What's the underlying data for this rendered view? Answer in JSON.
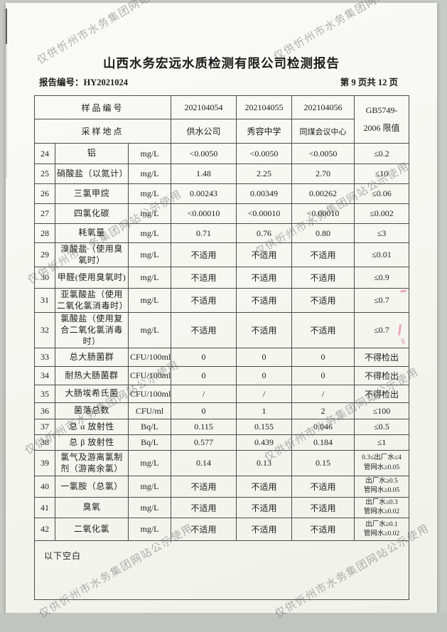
{
  "watermark": {
    "text": "仅供忻州市水务集团网站公示使用"
  },
  "header": {
    "title": "山西水务宏远水质检测有限公司检测报告",
    "report_no_label": "报告编号：",
    "report_no": "HY2021024",
    "page_info": "第 9 页共 12 页"
  },
  "table": {
    "header": {
      "sample_id_label": "样品编号",
      "location_label": "采样地点",
      "sample_ids": [
        "202104054",
        "202104055",
        "202104056"
      ],
      "locations": [
        "供水公司",
        "秀容中学",
        "同煤会议中心"
      ],
      "limit_header": "GB5749-\n2006 限值"
    },
    "rows": [
      {
        "no": "24",
        "name": "铝",
        "unit": "mg/L",
        "v1": "<0.0050",
        "v2": "<0.0050",
        "v3": "<0.0050",
        "limit": "≤0.2"
      },
      {
        "no": "25",
        "name": "硝酸盐（以氮计）",
        "unit": "mg/L",
        "v1": "1.48",
        "v2": "2.25",
        "v3": "2.70",
        "limit": "≤10"
      },
      {
        "no": "26",
        "name": "三氯甲烷",
        "unit": "mg/L",
        "v1": "0.00243",
        "v2": "0.00349",
        "v3": "0.00262",
        "limit": "≤0.06"
      },
      {
        "no": "27",
        "name": "四氯化碳",
        "unit": "mg/L",
        "v1": "<0.00010",
        "v2": "<0.00010",
        "v3": "<0.00010",
        "limit": "≤0.002"
      },
      {
        "no": "28",
        "name": "耗氧量",
        "unit": "mg/L",
        "v1": "0.71",
        "v2": "0.76",
        "v3": "0.80",
        "limit": "≤3"
      },
      {
        "no": "29",
        "name": "溴酸盐（使用臭氧时）",
        "unit": "mg/L",
        "v1": "不适用",
        "v2": "不适用",
        "v3": "不适用",
        "limit": "≤0.01"
      },
      {
        "no": "30",
        "name": "甲醛(使用臭氧时)",
        "unit": "mg/L",
        "v1": "不适用",
        "v2": "不适用",
        "v3": "不适用",
        "limit": "≤0.9"
      },
      {
        "no": "31",
        "name": "亚氯酸盐（使用二氧化氯消毒时）",
        "unit": "mg/L",
        "v1": "不适用",
        "v2": "不适用",
        "v3": "不适用",
        "limit": "≤0.7"
      },
      {
        "no": "32",
        "name": "氯酸盐（使用复合二氧化氯消毒时）",
        "unit": "mg/L",
        "v1": "不适用",
        "v2": "不适用",
        "v3": "不适用",
        "limit": "≤0.7"
      },
      {
        "no": "33",
        "name": "总大肠菌群",
        "unit": "CFU/100ml",
        "v1": "0",
        "v2": "0",
        "v3": "0",
        "limit": "不得检出"
      },
      {
        "no": "34",
        "name": "耐热大肠菌群",
        "unit": "CFU/100ml",
        "v1": "0",
        "v2": "0",
        "v3": "0",
        "limit": "不得检出"
      },
      {
        "no": "35",
        "name": "大肠埃希氏菌",
        "unit": "CFU/100ml",
        "v1": "/",
        "v2": "/",
        "v3": "/",
        "limit": "不得检出"
      },
      {
        "no": "36",
        "name": "菌落总数",
        "unit": "CFU/ml",
        "v1": "0",
        "v2": "1",
        "v3": "2",
        "limit": "≤100"
      },
      {
        "no": "37",
        "name": "总 α 放射性",
        "unit": "Bq/L",
        "v1": "0.115",
        "v2": "0.155",
        "v3": "0.046",
        "limit": "≤0.5"
      },
      {
        "no": "38",
        "name": "总 β 放射性",
        "unit": "Bq/L",
        "v1": "0.577",
        "v2": "0.439",
        "v3": "0.184",
        "limit": "≤1"
      },
      {
        "no": "39",
        "name": "氯气及游离氯制剂（游离余氯）",
        "unit": "mg/L",
        "v1": "0.14",
        "v2": "0.13",
        "v3": "0.15",
        "limit": "0.3≤出厂水≤4\n管网水≥0.05"
      },
      {
        "no": "40",
        "name": "一氯胺（总氯）",
        "unit": "mg/L",
        "v1": "不适用",
        "v2": "不适用",
        "v3": "不适用",
        "limit": "出厂水≥0.5\n管网水≥0.05"
      },
      {
        "no": "41",
        "name": "臭氧",
        "unit": "mg/L",
        "v1": "不适用",
        "v2": "不适用",
        "v3": "不适用",
        "limit": "出厂水≤0.3\n管网水≥0.02"
      },
      {
        "no": "42",
        "name": "二氧化氯",
        "unit": "mg/L",
        "v1": "不适用",
        "v2": "不适用",
        "v3": "不适用",
        "limit": "出厂水≥0.1\n管网水≥0.02"
      }
    ],
    "footer_note": "以下空白"
  }
}
